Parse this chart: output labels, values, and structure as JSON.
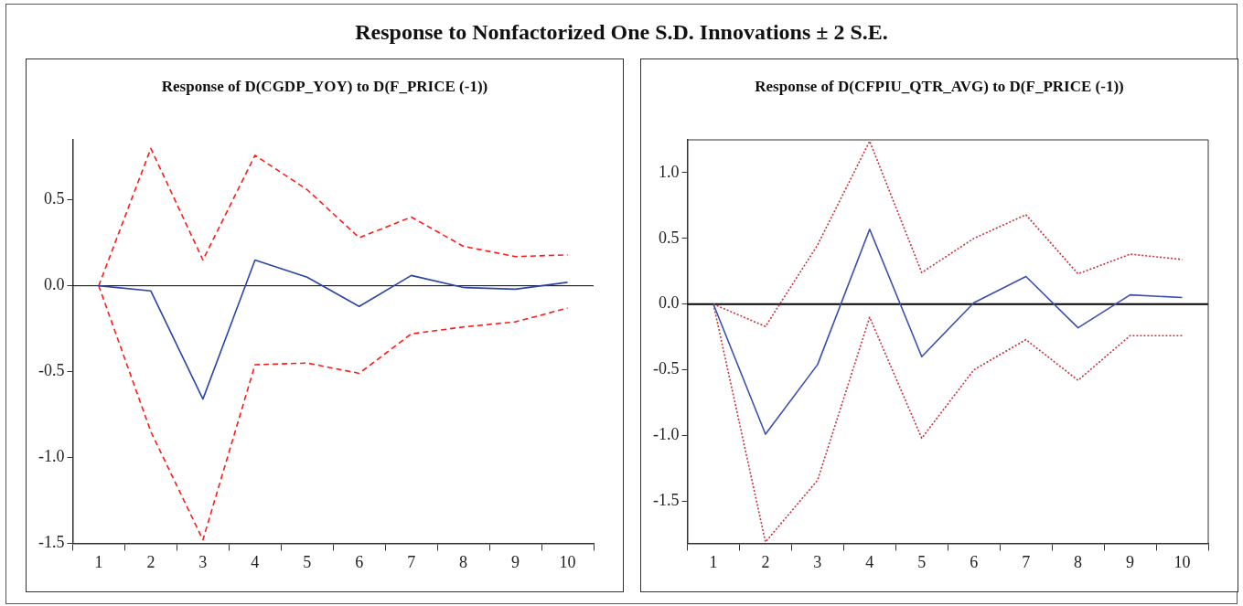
{
  "chart_data": [
    {
      "type": "line",
      "title": "Response to Nonfactorized One S.D. Innovations ± 2 S.E.",
      "subtitle": "Response of D(CGDP_YOY) to D(F_PRICE (-1))",
      "categories": [
        "1",
        "2",
        "3",
        "4",
        "5",
        "6",
        "7",
        "8",
        "9",
        "10"
      ],
      "series": [
        {
          "color": "#2b44a6",
          "line_style": "solid",
          "values": [
            0,
            -0.03,
            -0.66,
            0.15,
            0.05,
            -0.12,
            0.06,
            -0.01,
            -0.02,
            0.02
          ]
        },
        {
          "color": "#ff1a1a",
          "line_style": "dashed",
          "values": [
            0,
            0.8,
            0.15,
            0.76,
            0.56,
            0.28,
            0.4,
            0.23,
            0.17,
            0.18
          ]
        },
        {
          "color": "#ff1a1a",
          "line_style": "dashed",
          "values": [
            0,
            -0.85,
            -1.48,
            -0.46,
            -0.45,
            -0.51,
            -0.28,
            -0.24,
            -0.21,
            -0.13
          ]
        }
      ],
      "ylim": [
        -1.5,
        0.85
      ],
      "yticks": [
        -1.5,
        {
          "value": -1,
          "label": "-1.0"
        },
        -0.5,
        {
          "value": 0,
          "label": "0.0"
        },
        0.5
      ],
      "ref_lines": [
        {
          "axis": "y",
          "value": 0,
          "color": "#000000"
        }
      ],
      "grid": false,
      "legend": false
    },
    {
      "type": "line",
      "subtitle": "Response of D(CFPIU_QTR_AVG) to D(F_PRICE (-1))",
      "categories": [
        "1",
        "2",
        "3",
        "4",
        "5",
        "6",
        "7",
        "8",
        "9",
        "10"
      ],
      "series": [
        {
          "color": "#3b4fb0",
          "line_style": "solid",
          "values": [
            0,
            -0.99,
            -0.46,
            0.57,
            -0.4,
            0.01,
            0.21,
            -0.18,
            0.07,
            0.05
          ]
        },
        {
          "color": "#c8323f",
          "line_style": "dotted",
          "values": [
            0,
            -0.17,
            0.45,
            1.24,
            0.24,
            0.5,
            0.68,
            0.23,
            0.38,
            0.34
          ]
        },
        {
          "color": "#c8323f",
          "line_style": "dotted",
          "values": [
            0,
            -1.81,
            -1.34,
            -0.1,
            -1.02,
            -0.5,
            -0.27,
            -0.58,
            -0.24,
            -0.24
          ]
        }
      ],
      "ylim": [
        -1.82,
        1.25
      ],
      "yticks": [
        -1.5,
        {
          "value": -1,
          "label": "-1.0"
        },
        -0.5,
        {
          "value": 0,
          "label": "0.0"
        },
        0.5,
        {
          "value": 1,
          "label": "1.0"
        }
      ],
      "ref_lines": [
        {
          "axis": "y",
          "value": 0,
          "color": "#000000"
        }
      ],
      "grid": false,
      "legend": false
    }
  ]
}
